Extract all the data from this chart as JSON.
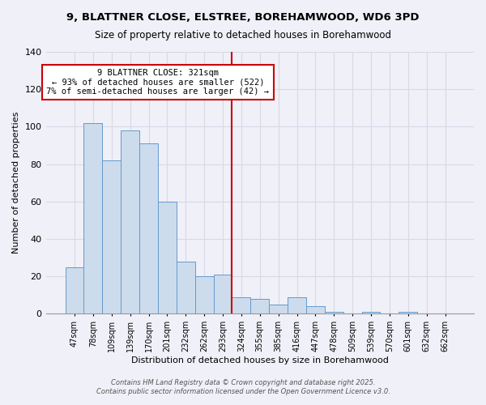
{
  "title": "9, BLATTNER CLOSE, ELSTREE, BOREHAMWOOD, WD6 3PD",
  "subtitle": "Size of property relative to detached houses in Borehamwood",
  "xlabel": "Distribution of detached houses by size in Borehamwood",
  "ylabel": "Number of detached properties",
  "bar_labels": [
    "47sqm",
    "78sqm",
    "109sqm",
    "139sqm",
    "170sqm",
    "201sqm",
    "232sqm",
    "262sqm",
    "293sqm",
    "324sqm",
    "355sqm",
    "385sqm",
    "416sqm",
    "447sqm",
    "478sqm",
    "509sqm",
    "539sqm",
    "570sqm",
    "601sqm",
    "632sqm",
    "662sqm"
  ],
  "bar_heights": [
    25,
    102,
    82,
    98,
    91,
    60,
    28,
    20,
    21,
    9,
    8,
    5,
    9,
    4,
    1,
    0,
    1,
    0,
    1,
    0,
    0
  ],
  "bar_color": "#ccdcec",
  "bar_edge_color": "#6699cc",
  "vline_color": "#cc0000",
  "vline_x_index": 9,
  "annotation_title": "9 BLATTNER CLOSE: 321sqm",
  "annotation_line1": "← 93% of detached houses are smaller (522)",
  "annotation_line2": "7% of semi-detached houses are larger (42) →",
  "annotation_box_color": "#ffffff",
  "annotation_box_edge": "#cc0000",
  "ylim": [
    0,
    140
  ],
  "yticks": [
    0,
    20,
    40,
    60,
    80,
    100,
    120,
    140
  ],
  "footer1": "Contains HM Land Registry data © Crown copyright and database right 2025.",
  "footer2": "Contains public sector information licensed under the Open Government Licence v3.0.",
  "background_color": "#f0f0f8",
  "grid_color": "#d8d8e8"
}
